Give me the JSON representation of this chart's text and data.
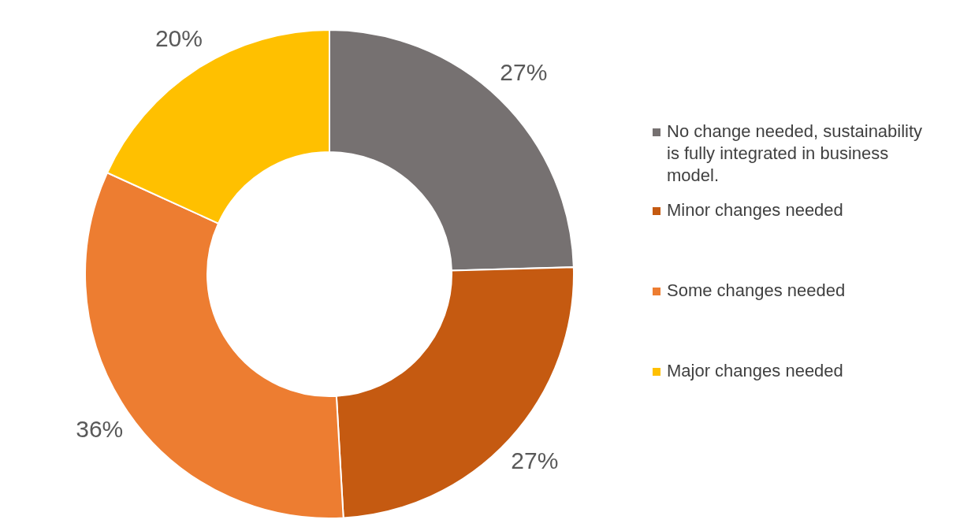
{
  "chart_data": {
    "type": "donut",
    "categories": [
      "No change needed, sustainability is fully integrated in business model.",
      "Minor changes needed",
      "Some changes needed",
      "Major changes needed"
    ],
    "values": [
      27,
      27,
      36,
      20
    ],
    "colors": [
      "#767171",
      "#c55a11",
      "#ed7d31",
      "#ffc000"
    ],
    "value_labels": [
      "27%",
      "27%",
      "36%",
      "20%"
    ],
    "legend": "right"
  }
}
